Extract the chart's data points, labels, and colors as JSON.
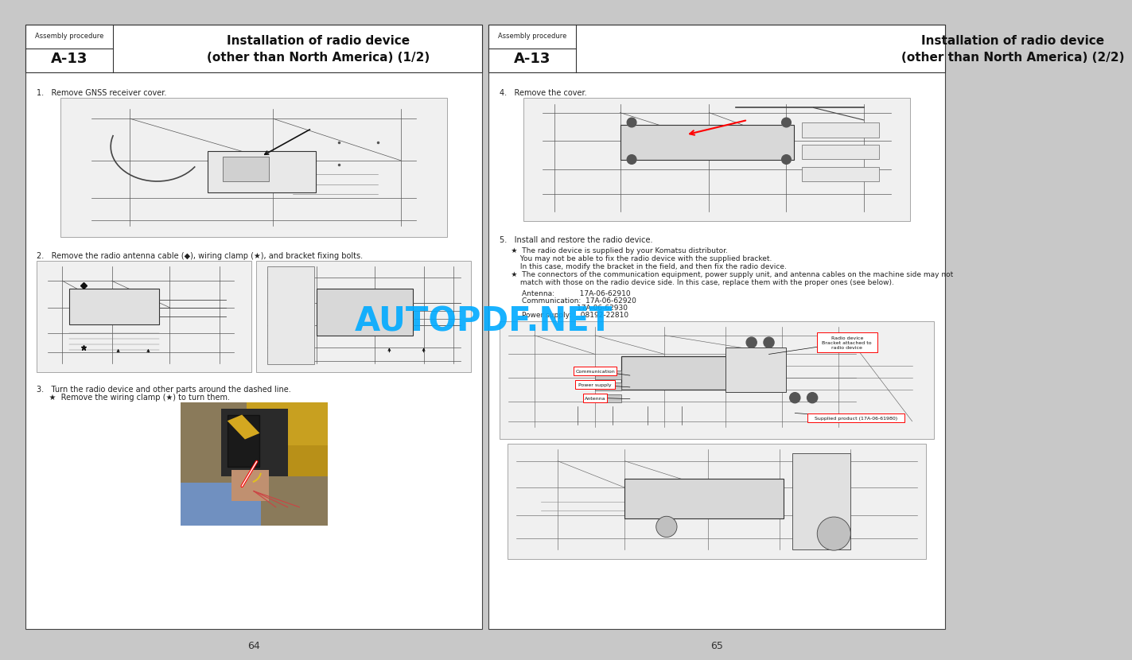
{
  "bg_color": "#c8c8c8",
  "page_bg": "#ffffff",
  "left_page": {
    "header_label": "Assembly procedure",
    "header_code": "A-13",
    "header_title": "Installation of radio device\n(other than North America) (1/2)",
    "page_number": "64",
    "step1_text": "1.   Remove GNSS receiver cover.",
    "step2_text": "2.   Remove the radio antenna cable (◆), wiring clamp (★), and bracket fixing bolts.",
    "step3_line1": "3.   Turn the radio device and other parts around the dashed line.",
    "step3_line2": "     ★  Remove the wiring clamp (★) to turn them."
  },
  "right_page": {
    "header_label": "Assembly procedure",
    "header_code": "A-13",
    "header_title": "Installation of radio device\n(other than North America) (2/2)",
    "page_number": "65",
    "step4_text": "4.   Remove the cover.",
    "step5_text": "5.   Install and restore the radio device.",
    "step5_b1_line1": "     ★  The radio device is supplied by your Komatsu distributor.",
    "step5_b1_line2": "         You may not be able to fix the radio device with the supplied bracket.",
    "step5_b1_line3": "         In this case, modify the bracket in the field, and then fix the radio device.",
    "step5_b2_line1": "     ★  The connectors of the communication equipment, power supply unit, and antenna cables on the machine side may not",
    "step5_b2_line2": "         match with those on the radio device side. In this case, replace them with the proper ones (see below).",
    "part1": "Antenna:           17A-06-62910",
    "part2": "Communication:  17A-06-62920",
    "part3": "                        17A-06-62930",
    "part4": "Power supply:    08192-22810"
  },
  "watermark_text": "AUTOPDF.NET",
  "watermark_color": "#00aaff",
  "watermark_alpha": 0.9
}
